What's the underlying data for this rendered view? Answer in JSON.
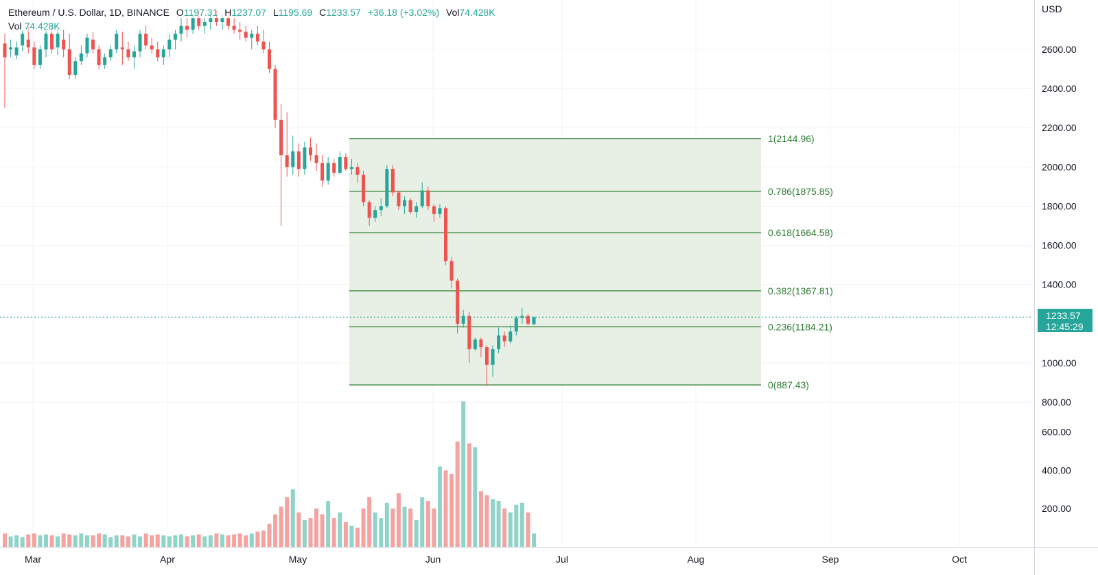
{
  "legend": {
    "symbol": "Ethereum / U.S. Dollar, 1D, BINANCE",
    "open_key": "O",
    "open": "1197.31",
    "high_key": "H",
    "high": "1237.07",
    "low_key": "L",
    "low": "1195.69",
    "close_key": "C",
    "close": "1233.57",
    "change": "+36.18 (+3.02%)",
    "vol_key": "Vol",
    "vol": "74.428K"
  },
  "volume_legend": {
    "label": "Vol",
    "value": "74.428K"
  },
  "price_axis": {
    "currency": "USD",
    "ticks": [
      "2600.00",
      "2400.00",
      "2200.00",
      "2000.00",
      "1800.00",
      "1600.00",
      "1400.00",
      "1000.00",
      "800.00",
      "600.00",
      "400.00",
      "200.00"
    ]
  },
  "time_axis": {
    "ticks": [
      "Mar",
      "Apr",
      "May",
      "Jun",
      "Jul",
      "Aug",
      "Sep",
      "Oct"
    ]
  },
  "last_price": {
    "price": "1233.57",
    "countdown": "12:45:29"
  },
  "fib_levels": [
    {
      "label": "1(2144.96)",
      "price": 2144.96
    },
    {
      "label": "0.786(1875.85)",
      "price": 1875.85
    },
    {
      "label": "0.618(1664.58)",
      "price": 1664.58
    },
    {
      "label": "0.382(1367.81)",
      "price": 1367.81
    },
    {
      "label": "0.236(1184.21)",
      "price": 1184.21
    },
    {
      "label": "0(887.43)",
      "price": 887.43
    }
  ],
  "colors": {
    "up": "#26a69a",
    "down": "#ef5350",
    "vol_up": "#8fd3c9",
    "vol_down": "#f5a3a1",
    "fib": "#2e7d32",
    "fib_fill": "#e8efe5",
    "grid": "#f0f3fa"
  },
  "chart_data": {
    "type": "candlestick",
    "price_range": [
      880,
      2680
    ],
    "volume_max": 760,
    "candles": [
      [
        2630,
        2680,
        2300,
        2560,
        70
      ],
      [
        2600,
        2650,
        2560,
        2610,
        55
      ],
      [
        2570,
        2640,
        2550,
        2610,
        60
      ],
      [
        2620,
        2700,
        2590,
        2680,
        50
      ],
      [
        2650,
        2720,
        2580,
        2610,
        65
      ],
      [
        2610,
        2640,
        2500,
        2520,
        70
      ],
      [
        2520,
        2620,
        2500,
        2600,
        60
      ],
      [
        2600,
        2700,
        2560,
        2680,
        65
      ],
      [
        2680,
        2720,
        2580,
        2600,
        60
      ],
      [
        2610,
        2700,
        2570,
        2680,
        55
      ],
      [
        2650,
        2700,
        2560,
        2600,
        70
      ],
      [
        2600,
        2680,
        2450,
        2470,
        65
      ],
      [
        2470,
        2560,
        2450,
        2540,
        60
      ],
      [
        2540,
        2620,
        2520,
        2580,
        70
      ],
      [
        2580,
        2680,
        2560,
        2660,
        60
      ],
      [
        2650,
        2690,
        2580,
        2600,
        60
      ],
      [
        2600,
        2620,
        2500,
        2520,
        70
      ],
      [
        2520,
        2580,
        2500,
        2560,
        65
      ],
      [
        2560,
        2620,
        2540,
        2600,
        50
      ],
      [
        2600,
        2700,
        2580,
        2680,
        60
      ]
    ]
  }
}
